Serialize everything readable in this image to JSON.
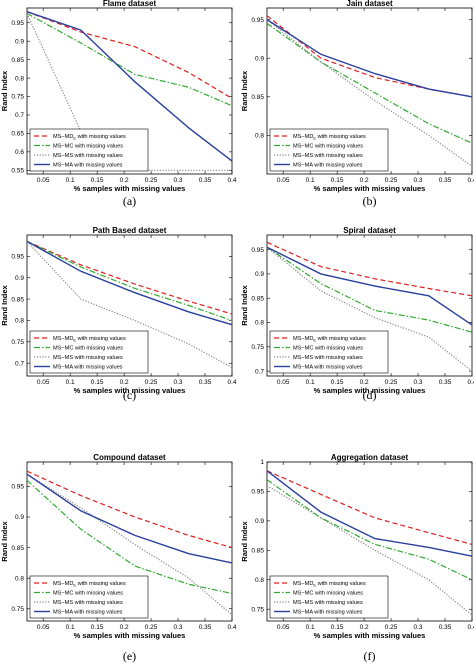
{
  "chart_data": [
    {
      "type": "line",
      "title": "Flame dataset",
      "xlabel": "% samples with missing values",
      "ylabel": "Rand Index",
      "subcaption": "(a)",
      "xlim": [
        0.02,
        0.4
      ],
      "ylim": [
        0.54,
        0.99
      ],
      "xticks": [
        "0.05",
        "0.1",
        "0.15",
        "0.2",
        "0.25",
        "0.3",
        "0.35",
        "0.4"
      ],
      "yticks": [
        "0.55",
        "0.6",
        "0.65",
        "0.7",
        "0.75",
        "0.8",
        "0.85",
        "0.9",
        "0.95"
      ],
      "legend_position": "bottom-left",
      "series": [
        {
          "name": "MS−MD with missing values",
          "name_sub": "E",
          "color": "#e02020",
          "style": "dashed",
          "x": [
            0.02,
            0.12,
            0.22,
            0.32,
            0.4
          ],
          "y": [
            0.98,
            0.925,
            0.885,
            0.815,
            0.745
          ]
        },
        {
          "name": "MS−MC with missing values",
          "color": "#33aa33",
          "style": "dashdot",
          "x": [
            0.02,
            0.12,
            0.22,
            0.32,
            0.4
          ],
          "y": [
            0.975,
            0.895,
            0.81,
            0.775,
            0.725
          ]
        },
        {
          "name": "MS−MS with missing values",
          "color": "#888888",
          "style": "dotted",
          "x": [
            0.02,
            0.12,
            0.22,
            0.32,
            0.4
          ],
          "y": [
            0.975,
            0.655,
            0.55,
            0.55,
            0.55
          ]
        },
        {
          "name": "MS−MA with missing values",
          "color": "#2a3f9e",
          "style": "solid",
          "x": [
            0.02,
            0.12,
            0.22,
            0.32,
            0.4
          ],
          "y": [
            0.98,
            0.93,
            0.79,
            0.665,
            0.575
          ]
        }
      ]
    },
    {
      "type": "line",
      "title": "Jain dataset",
      "xlabel": "% samples with missing values",
      "ylabel": "Rand Index",
      "subcaption": "(b)",
      "xlim": [
        0.02,
        0.4
      ],
      "ylim": [
        0.75,
        0.965
      ],
      "xticks": [
        "0.05",
        "0.1",
        "0.15",
        "0.2",
        "0.25",
        "0.3",
        "0.35",
        "0.4"
      ],
      "yticks": [
        "0.8",
        "0.85",
        "0.9",
        "0.95"
      ],
      "legend_position": "bottom-left",
      "series": [
        {
          "name": "MS−MD with missing values",
          "name_sub": "E",
          "color": "#e02020",
          "style": "dashed",
          "x": [
            0.02,
            0.12,
            0.22,
            0.32,
            0.4
          ],
          "y": [
            0.955,
            0.9,
            0.875,
            0.86,
            0.85
          ]
        },
        {
          "name": "MS−MC with missing values",
          "color": "#33aa33",
          "style": "dashdot",
          "x": [
            0.02,
            0.12,
            0.22,
            0.32,
            0.4
          ],
          "y": [
            0.945,
            0.895,
            0.855,
            0.815,
            0.79
          ]
        },
        {
          "name": "MS−MS with missing values",
          "color": "#888888",
          "style": "dotted",
          "x": [
            0.02,
            0.12,
            0.22,
            0.32,
            0.4
          ],
          "y": [
            0.95,
            0.895,
            0.845,
            0.8,
            0.76
          ]
        },
        {
          "name": "MS−MA with missing values",
          "color": "#2a3f9e",
          "style": "solid",
          "x": [
            0.02,
            0.12,
            0.22,
            0.32,
            0.4
          ],
          "y": [
            0.95,
            0.905,
            0.88,
            0.86,
            0.85
          ]
        }
      ]
    },
    {
      "type": "line",
      "title": "Path Based dataset",
      "xlabel": "% samples with missing values",
      "ylabel": "Rand Index",
      "subcaption": "(c)",
      "xlim": [
        0.02,
        0.4
      ],
      "ylim": [
        0.67,
        1.0
      ],
      "xticks": [
        "0.05",
        "0.1",
        "0.15",
        "0.2",
        "0.25",
        "0.3",
        "0.35",
        "0.4"
      ],
      "yticks": [
        "0.7",
        "0.75",
        "0.8",
        "0.85",
        "0.9",
        "0.95"
      ],
      "legend_position": "bottom-left",
      "series": [
        {
          "name": "MS−MD with missing values",
          "name_sub": "E",
          "color": "#e02020",
          "style": "dashed",
          "x": [
            0.02,
            0.12,
            0.22,
            0.32,
            0.4
          ],
          "y": [
            0.985,
            0.93,
            0.885,
            0.845,
            0.815
          ]
        },
        {
          "name": "MS−MC with missing values",
          "color": "#33aa33",
          "style": "dashdot",
          "x": [
            0.02,
            0.12,
            0.22,
            0.32,
            0.4
          ],
          "y": [
            0.985,
            0.925,
            0.875,
            0.835,
            0.8
          ]
        },
        {
          "name": "MS−MS with missing values",
          "color": "#888888",
          "style": "dotted",
          "x": [
            0.02,
            0.12,
            0.22,
            0.32,
            0.4
          ],
          "y": [
            0.985,
            0.85,
            0.8,
            0.745,
            0.69
          ]
        },
        {
          "name": "MS−MA with missing values",
          "color": "#2a3f9e",
          "style": "solid",
          "x": [
            0.02,
            0.12,
            0.22,
            0.32,
            0.4
          ],
          "y": [
            0.985,
            0.915,
            0.865,
            0.82,
            0.79
          ]
        }
      ]
    },
    {
      "type": "line",
      "title": "Spiral dataset",
      "xlabel": "% samples with missing values",
      "ylabel": "Rand Index",
      "subcaption": "(d)",
      "xlim": [
        0.02,
        0.4
      ],
      "ylim": [
        0.69,
        0.98
      ],
      "xticks": [
        "0.05",
        "0.1",
        "0.15",
        "0.2",
        "0.25",
        "0.3",
        "0.35",
        "0.4"
      ],
      "yticks": [
        "0.7",
        "0.75",
        "0.8",
        "0.85",
        "0.9",
        "0.95"
      ],
      "legend_position": "bottom-left",
      "series": [
        {
          "name": "MS−MD with missing values",
          "name_sub": "E",
          "color": "#e02020",
          "style": "dashed",
          "x": [
            0.02,
            0.12,
            0.22,
            0.32,
            0.4
          ],
          "y": [
            0.965,
            0.915,
            0.89,
            0.87,
            0.855
          ]
        },
        {
          "name": "MS−MC with missing values",
          "color": "#33aa33",
          "style": "dashdot",
          "x": [
            0.02,
            0.12,
            0.22,
            0.32,
            0.4
          ],
          "y": [
            0.955,
            0.88,
            0.825,
            0.805,
            0.78
          ]
        },
        {
          "name": "MS−MS with missing values",
          "color": "#888888",
          "style": "dotted",
          "x": [
            0.02,
            0.12,
            0.22,
            0.32,
            0.4
          ],
          "y": [
            0.955,
            0.865,
            0.81,
            0.77,
            0.7
          ]
        },
        {
          "name": "MS−MA with missing values",
          "color": "#2a3f9e",
          "style": "solid",
          "x": [
            0.02,
            0.12,
            0.22,
            0.32,
            0.4
          ],
          "y": [
            0.955,
            0.9,
            0.875,
            0.855,
            0.795
          ]
        }
      ]
    },
    {
      "type": "line",
      "title": "Compound dataset",
      "xlabel": "% samples with missing values",
      "ylabel": "Rand Index",
      "subcaption": "(e)",
      "xlim": [
        0.02,
        0.4
      ],
      "ylim": [
        0.73,
        0.99
      ],
      "xticks": [
        "0.05",
        "0.1",
        "0.15",
        "0.2",
        "0.25",
        "0.3",
        "0.35",
        "0.4"
      ],
      "yticks": [
        "0.75",
        "0.8",
        "0.85",
        "0.9",
        "0.95"
      ],
      "legend_position": "bottom-left",
      "series": [
        {
          "name": "MS−MD with missing values",
          "name_sub": "E",
          "color": "#e02020",
          "style": "dashed",
          "x": [
            0.02,
            0.12,
            0.22,
            0.32,
            0.4
          ],
          "y": [
            0.975,
            0.935,
            0.9,
            0.87,
            0.85
          ]
        },
        {
          "name": "MS−MC with missing values",
          "color": "#33aa33",
          "style": "dashdot",
          "x": [
            0.02,
            0.12,
            0.22,
            0.32,
            0.4
          ],
          "y": [
            0.96,
            0.88,
            0.82,
            0.79,
            0.775
          ]
        },
        {
          "name": "MS−MS with missing values",
          "color": "#888888",
          "style": "dotted",
          "x": [
            0.02,
            0.12,
            0.22,
            0.32,
            0.4
          ],
          "y": [
            0.97,
            0.915,
            0.855,
            0.8,
            0.74
          ]
        },
        {
          "name": "MS−MA with missing values",
          "color": "#2a3f9e",
          "style": "solid",
          "x": [
            0.02,
            0.12,
            0.22,
            0.32,
            0.4
          ],
          "y": [
            0.97,
            0.91,
            0.87,
            0.84,
            0.825
          ]
        }
      ]
    },
    {
      "type": "line",
      "title": "Aggregation dataset",
      "xlabel": "% samples with missing values",
      "ylabel": "Rand Index",
      "subcaption": "(f)",
      "xlim": [
        0.02,
        0.4
      ],
      "ylim": [
        0.73,
        1.0
      ],
      "xticks": [
        "0.05",
        "0.1",
        "0.15",
        "0.2",
        "0.25",
        "0.3",
        "0.35",
        "0.4"
      ],
      "yticks": [
        "0.75",
        "0.8",
        "0.85",
        "0.9",
        "0.95",
        "1"
      ],
      "legend_position": "bottom-left",
      "series": [
        {
          "name": "MS−MD with missing values",
          "name_sub": "E",
          "color": "#e02020",
          "style": "dashed",
          "x": [
            0.02,
            0.12,
            0.22,
            0.32,
            0.4
          ],
          "y": [
            0.985,
            0.945,
            0.905,
            0.88,
            0.86
          ]
        },
        {
          "name": "MS−MC with missing values",
          "color": "#33aa33",
          "style": "dashdot",
          "x": [
            0.02,
            0.12,
            0.22,
            0.32,
            0.4
          ],
          "y": [
            0.97,
            0.905,
            0.86,
            0.835,
            0.8
          ]
        },
        {
          "name": "MS−MS with missing values",
          "color": "#888888",
          "style": "dotted",
          "x": [
            0.02,
            0.12,
            0.22,
            0.32,
            0.4
          ],
          "y": [
            0.96,
            0.905,
            0.85,
            0.8,
            0.74
          ]
        },
        {
          "name": "MS−MA with missing values",
          "color": "#2a3f9e",
          "style": "solid",
          "x": [
            0.02,
            0.12,
            0.22,
            0.32,
            0.4
          ],
          "y": [
            0.985,
            0.915,
            0.87,
            0.855,
            0.84
          ]
        }
      ]
    }
  ]
}
